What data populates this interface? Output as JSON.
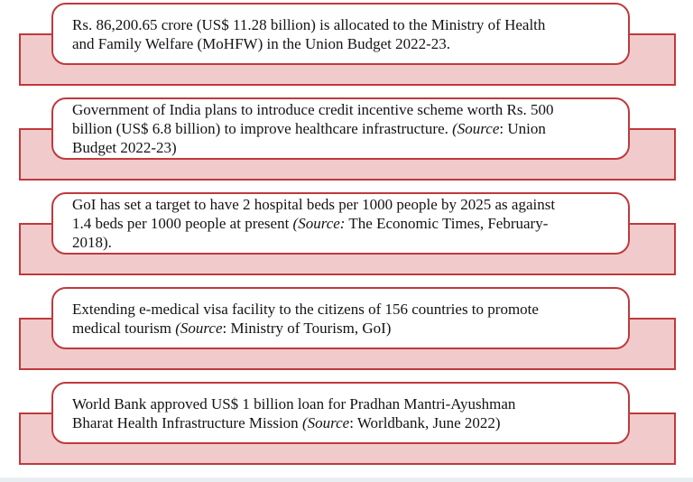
{
  "colors": {
    "accent_red": "#C0393C",
    "shadow_pink": "#F1CBCB",
    "bubble_fill": "#FFFFFF",
    "text": "#131313",
    "page_background": "#FFFFFF",
    "bottom_strip": "#E9EEF3"
  },
  "boxes": [
    {
      "name": "mohfw-budget-allocation",
      "segments": [
        {
          "text": "Rs. 86,200.65 crore (US$ 11.28 billion) is allocated to the Ministry of Health\nand Family Welfare (MoHFW) in the Union Budget 2022-23.",
          "italic": false
        }
      ]
    },
    {
      "name": "credit-incentive-scheme",
      "segments": [
        {
          "text": "Government of India plans to introduce credit incentive scheme worth Rs. 500\nbillion (US$ 6.8 billion) to improve healthcare infrastructure. ",
          "italic": false
        },
        {
          "text": "(Source",
          "italic": true
        },
        {
          "text": ": Union\nBudget 2022-23)",
          "italic": false
        }
      ]
    },
    {
      "name": "hospital-beds-target",
      "segments": [
        {
          "text": "GoI has set a target to have 2 hospital beds per 1000 people by 2025 as against\n1.4 beds per 1000 people at present ",
          "italic": false
        },
        {
          "text": "(Source:",
          "italic": true
        },
        {
          "text": " The Economic Times, February-\n2018).",
          "italic": false
        }
      ]
    },
    {
      "name": "e-medical-visa-extension",
      "segments": [
        {
          "text": "Extending e-medical visa facility to the citizens of 156 countries to promote\nmedical tourism ",
          "italic": false
        },
        {
          "text": "(Source",
          "italic": true
        },
        {
          "text": ": Ministry of Tourism, GoI)",
          "italic": false
        }
      ]
    },
    {
      "name": "world-bank-loan",
      "segments": [
        {
          "text": "World Bank approved US$ 1 billion loan for Pradhan Mantri-Ayushman\nBharat Health Infrastructure Mission ",
          "italic": false
        },
        {
          "text": "(Source",
          "italic": true
        },
        {
          "text": ": Worldbank, June 2022)",
          "italic": false
        }
      ]
    }
  ]
}
